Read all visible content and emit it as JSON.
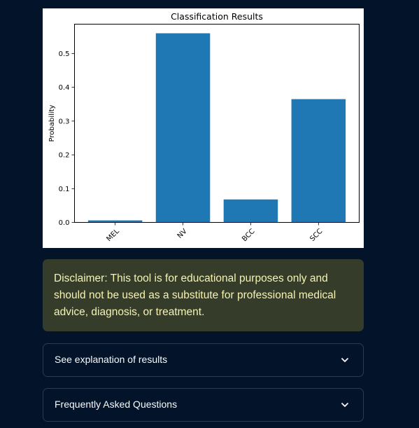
{
  "chart_data": {
    "type": "bar",
    "title": "Classification Results",
    "xlabel": "",
    "ylabel": "Probability",
    "categories": [
      "MEL",
      "NV",
      "BCC",
      "SCC"
    ],
    "values": [
      0.006,
      0.56,
      0.068,
      0.365
    ],
    "ylim": [
      0,
      0.587
    ],
    "yticks": [
      0.0,
      0.1,
      0.2,
      0.3,
      0.4,
      0.5
    ],
    "ytick_labels": [
      "0.0",
      "0.1",
      "0.2",
      "0.3",
      "0.4",
      "0.5"
    ],
    "bar_color": "#1f77b4",
    "grid": false,
    "legend": "none"
  },
  "disclaimer": {
    "text": "Disclaimer: This tool is for educational purposes only and should not be used as a substitute for professional medical advice, diagnosis, or treatment."
  },
  "expanders": [
    {
      "label": "See explanation of results",
      "icon": "chevron-down-icon"
    },
    {
      "label": "Frequently Asked Questions",
      "icon": "chevron-down-icon"
    }
  ]
}
